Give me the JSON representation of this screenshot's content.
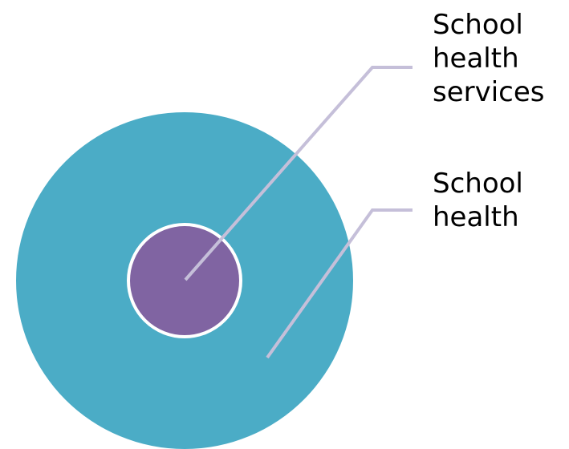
{
  "diagram": {
    "type": "nested-circles",
    "labels": {
      "inner": "School\nhealth\nservices",
      "outer": "School\nhealth"
    },
    "colors": {
      "outer_circle": "#4BACC6",
      "inner_circle": "#8064A2",
      "inner_border": "#FFFFFF",
      "leader_line": "#C5BFD9",
      "text": "#000000"
    }
  }
}
